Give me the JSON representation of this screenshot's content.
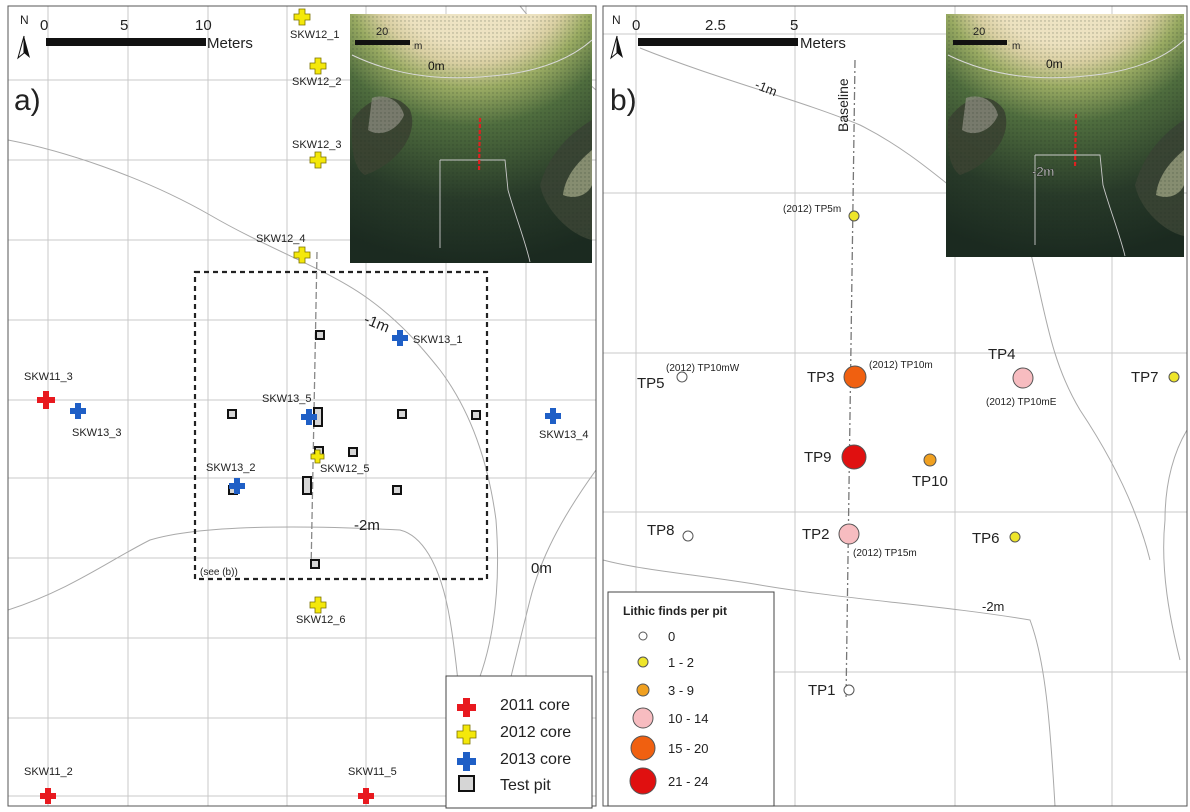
{
  "panel_a": {
    "label": "a)",
    "north": "N",
    "scale": {
      "ticks": [
        "0",
        "5",
        "10"
      ],
      "unit": "Meters"
    },
    "inset": {
      "scale_value": "20",
      "scale_unit": "m",
      "contour_label": "0m"
    },
    "contours": [
      "-1m",
      "-2m",
      "0m"
    ],
    "see_note": "(see (b))",
    "cores": [
      {
        "id": "SKW11_3",
        "year": "2011"
      },
      {
        "id": "SKW11_2",
        "year": "2011"
      },
      {
        "id": "SKW11_5",
        "year": "2011"
      },
      {
        "id": "SKW12_1",
        "year": "2012"
      },
      {
        "id": "SKW12_2",
        "year": "2012"
      },
      {
        "id": "SKW12_3",
        "year": "2012"
      },
      {
        "id": "SKW12_4",
        "year": "2012"
      },
      {
        "id": "SKW12_5",
        "year": "2012"
      },
      {
        "id": "SKW12_6",
        "year": "2012"
      },
      {
        "id": "SKW13_1",
        "year": "2013"
      },
      {
        "id": "SKW13_2",
        "year": "2013"
      },
      {
        "id": "SKW13_3",
        "year": "2013"
      },
      {
        "id": "SKW13_4",
        "year": "2013"
      },
      {
        "id": "SKW13_5",
        "year": "2013"
      }
    ],
    "legend": [
      {
        "label": "2011 core",
        "color": "#e8191f"
      },
      {
        "label": "2012 core",
        "color": "#f4e80a"
      },
      {
        "label": "2013 core",
        "color": "#1f5fc6"
      },
      {
        "label": "Test pit",
        "color": "#cfcfcf"
      }
    ]
  },
  "panel_b": {
    "label": "b)",
    "north": "N",
    "scale": {
      "ticks": [
        "0",
        "2.5",
        "5"
      ],
      "unit": "Meters"
    },
    "inset": {
      "scale_value": "20",
      "scale_unit": "m",
      "contour_labels": [
        "0m",
        "-2m"
      ]
    },
    "baseline": "Baseline",
    "contours": [
      "-1m",
      "-2m"
    ],
    "pits": [
      {
        "id": "TP1",
        "finds_class": "0",
        "alt": ""
      },
      {
        "id": "TP2",
        "finds_class": "10 - 14",
        "alt": "(2012) TP15m"
      },
      {
        "id": "TP3",
        "finds_class": "15 - 20",
        "alt": "(2012) TP10m"
      },
      {
        "id": "TP4",
        "finds_class": "10 - 14",
        "alt": "(2012) TP10mE"
      },
      {
        "id": "TP5",
        "finds_class": "0",
        "alt": "(2012) TP10mW"
      },
      {
        "id": "TP6",
        "finds_class": "1 - 2",
        "alt": ""
      },
      {
        "id": "TP7",
        "finds_class": "1 - 2",
        "alt": ""
      },
      {
        "id": "TP8",
        "finds_class": "0",
        "alt": ""
      },
      {
        "id": "TP9",
        "finds_class": "21 - 24",
        "alt": ""
      },
      {
        "id": "TP10",
        "finds_class": "3 - 9",
        "alt": ""
      },
      {
        "id": "",
        "finds_class": "1 - 2",
        "alt": "(2012) TP5m"
      }
    ],
    "legend": {
      "title": "Lithic finds per pit",
      "classes": [
        {
          "label": "0",
          "color": "#ffffff"
        },
        {
          "label": "1 - 2",
          "color": "#eee52a"
        },
        {
          "label": "3 - 9",
          "color": "#f0a020"
        },
        {
          "label": "10 - 14",
          "color": "#f7bcc0"
        },
        {
          "label": "15 - 20",
          "color": "#f06010"
        },
        {
          "label": "21 - 24",
          "color": "#e01010"
        }
      ]
    }
  }
}
